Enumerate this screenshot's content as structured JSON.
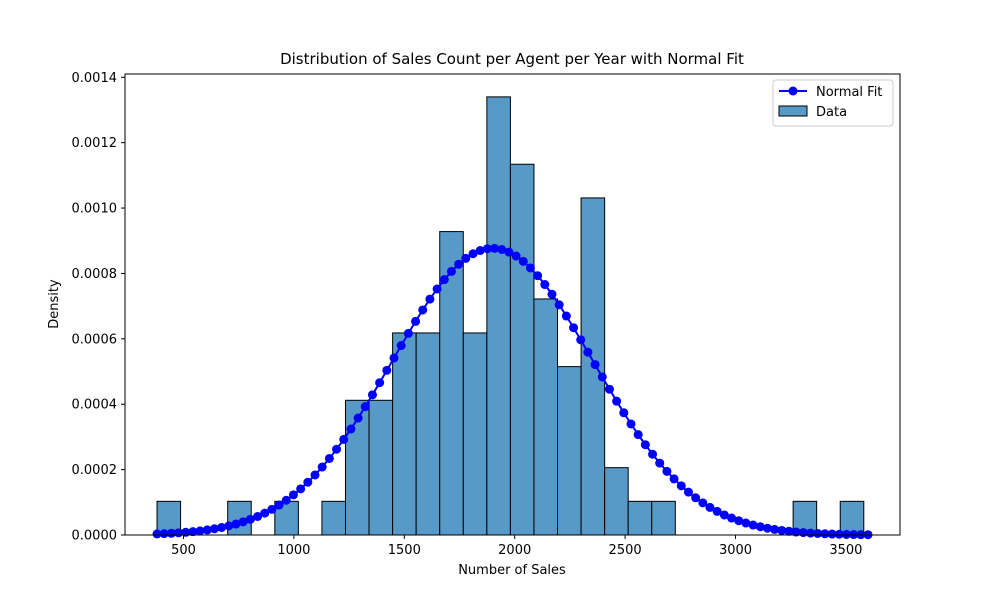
{
  "chart_data": {
    "type": "bar",
    "title": "Distribution of Sales Count per Agent per Year with Normal Fit",
    "xlabel": "Number of Sales",
    "ylabel": "Density",
    "xlim": [
      235,
      3745
    ],
    "ylim": [
      0,
      0.00141
    ],
    "x_ticks": [
      500,
      1000,
      1500,
      2000,
      2500,
      3000,
      3500
    ],
    "y_ticks": [
      0.0,
      0.0002,
      0.0004,
      0.0006,
      0.0008,
      0.001,
      0.0012,
      0.0014
    ],
    "x_tick_labels": [
      "500",
      "1000",
      "1500",
      "2000",
      "2500",
      "3000",
      "3500"
    ],
    "y_tick_labels": [
      "0.0000",
      "0.0002",
      "0.0004",
      "0.0006",
      "0.0008",
      "0.0010",
      "0.0012",
      "0.0014"
    ],
    "legend": {
      "position": "top-right",
      "entries": [
        {
          "label": "Normal Fit",
          "kind": "line-marker",
          "color": "#0000ff"
        },
        {
          "label": "Data",
          "kind": "bar",
          "color": "#5799c7"
        }
      ]
    },
    "histogram": {
      "name": "Data",
      "color": "#5799c7",
      "edge_color": "#000000",
      "bin_start": 380,
      "bin_width": 106.7,
      "densities": [
        0.000103,
        0,
        0,
        0.000103,
        0,
        0.000103,
        0,
        0.000103,
        0.000412,
        0.000412,
        0.000618,
        0.000618,
        0.000928,
        0.000618,
        0.00134,
        0.001134,
        0.000722,
        0.000515,
        0.001031,
        0.000206,
        0.000103,
        0.000103,
        0,
        0,
        0,
        0,
        0,
        0.000103,
        0,
        0.000103
      ]
    },
    "normal_fit": {
      "name": "Normal Fit",
      "color": "#0000ff",
      "mean": 1900,
      "std": 455,
      "x_min": 380,
      "x_max": 3600,
      "n_points": 100
    },
    "grid": false
  }
}
